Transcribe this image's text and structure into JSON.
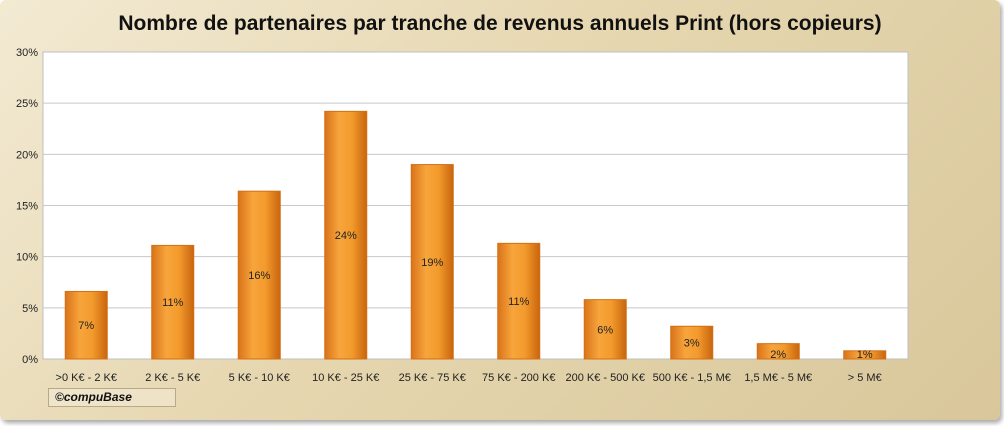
{
  "chart_data": {
    "type": "bar",
    "title": "Nombre de partenaires par tranche de revenus annuels Print (hors copieurs)",
    "categories": [
      ">0 K€ - 2 K€",
      "2 K€ - 5 K€",
      "5 K€ - 10 K€",
      "10 K€ - 25 K€",
      "25 K€ - 75 K€",
      "75 K€ - 200 K€",
      "200 K€ - 500 K€",
      "500 K€ - 1,5 M€",
      "1,5 M€ - 5 M€",
      "> 5 M€"
    ],
    "values": [
      6.6,
      11.1,
      16.4,
      24.2,
      19.0,
      11.3,
      5.8,
      3.2,
      1.5,
      0.8
    ],
    "data_labels": [
      "7%",
      "11%",
      "16%",
      "24%",
      "19%",
      "11%",
      "6%",
      "3%",
      "2%",
      "1%"
    ],
    "yticks": [
      "0%",
      "5%",
      "10%",
      "15%",
      "20%",
      "25%",
      "30%"
    ],
    "ylim": [
      0,
      30
    ],
    "grid": true,
    "legend": "none",
    "bar_color": "#f39a2c",
    "bar_color_dark": "#d46f12"
  },
  "footer": {
    "copyright": "©compuBase"
  }
}
